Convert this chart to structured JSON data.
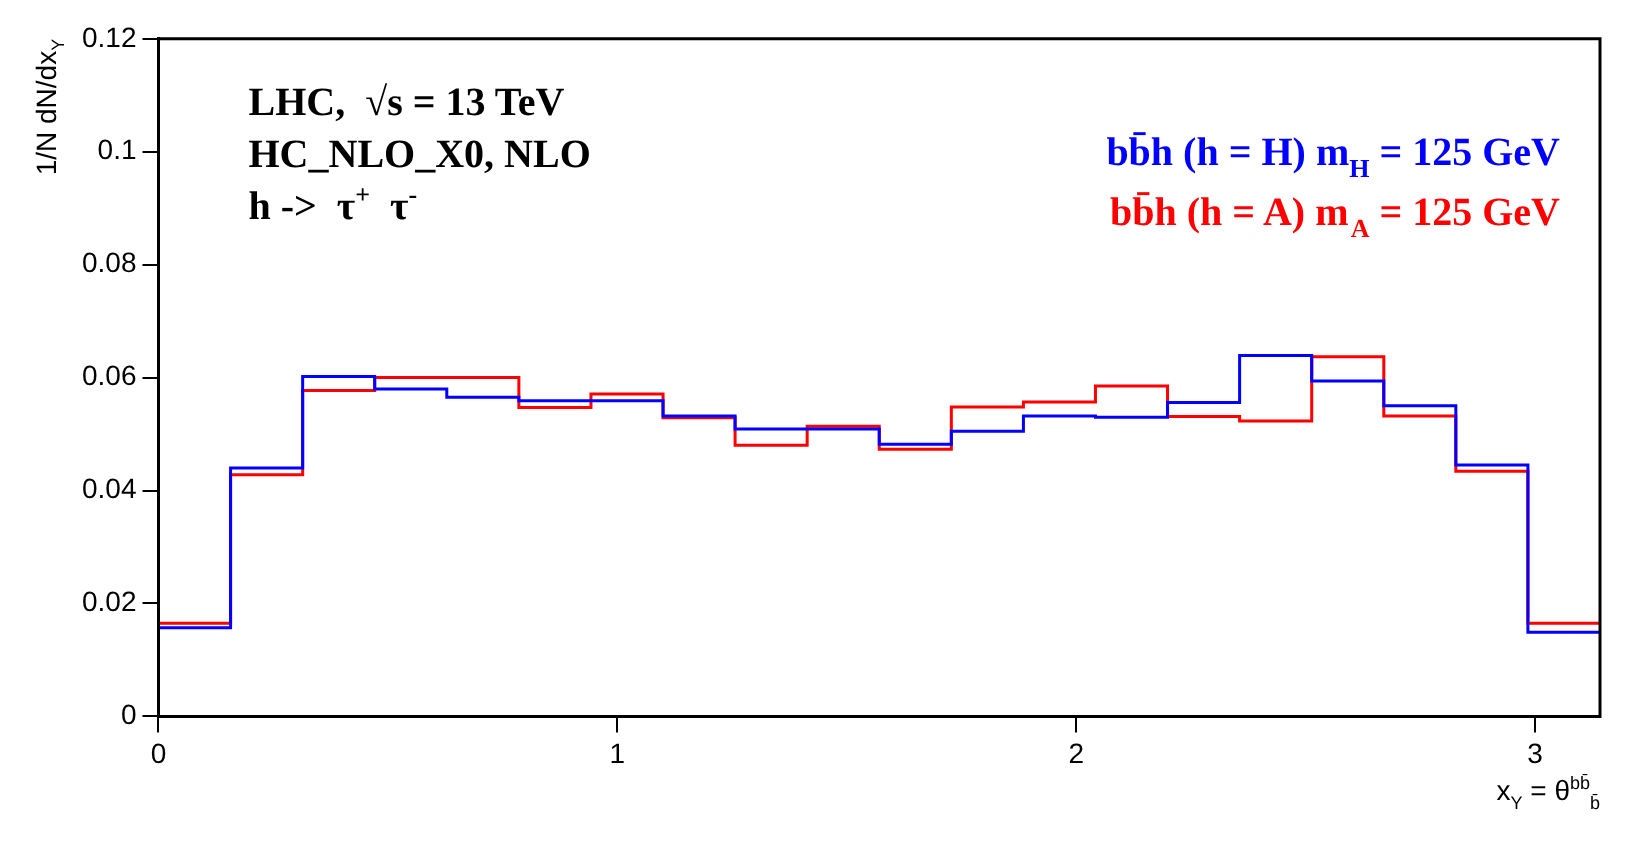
{
  "chart_data": {
    "type": "histogram",
    "bins": [
      0,
      0.1571,
      0.3142,
      0.4712,
      0.6283,
      0.7854,
      0.9425,
      1.0996,
      1.2566,
      1.4137,
      1.5708,
      1.7279,
      1.885,
      2.042,
      2.1991,
      2.3562,
      2.5133,
      2.6704,
      2.8274,
      2.9845,
      3.1416
    ],
    "series": [
      {
        "name": "bb̄h (h = H) m$_{H}$ = 125 GeV",
        "color": "#0000ff",
        "values": [
          0.0157,
          0.044,
          0.0602,
          0.058,
          0.0565,
          0.0559,
          0.0559,
          0.0532,
          0.0509,
          0.0509,
          0.0482,
          0.0505,
          0.0532,
          0.053,
          0.0556,
          0.0639,
          0.0594,
          0.055,
          0.0445,
          0.0149
        ]
      },
      {
        "name": "bb̄h (h = A) m$_{A}$ = 125 GeV",
        "color": "#ff0000",
        "values": [
          0.0165,
          0.0428,
          0.0577,
          0.06,
          0.06,
          0.0547,
          0.0571,
          0.0529,
          0.048,
          0.0514,
          0.0473,
          0.0548,
          0.0557,
          0.0585,
          0.0531,
          0.0523,
          0.0637,
          0.0532,
          0.0434,
          0.0165
        ]
      }
    ],
    "xlim": [
      0,
      3.1416
    ],
    "xticks": [
      0,
      1,
      2,
      3
    ],
    "ylim": [
      0,
      0.12
    ],
    "yticks": [
      0,
      0.02,
      0.04,
      0.06,
      0.08,
      0.1,
      0.12
    ],
    "xlabel": "x$_{Y}$ = θ$^{bb̄}$$_{b̄}$",
    "ylabel": "1/N dN/dx$_{Y}$",
    "annotations": [
      "LHC,  √s = 13 TeV",
      "HC_NLO_X0, NLO",
      "h ->  τ$^{+}$  τ$^{-}$"
    ],
    "legend": "top right",
    "grid": false
  }
}
